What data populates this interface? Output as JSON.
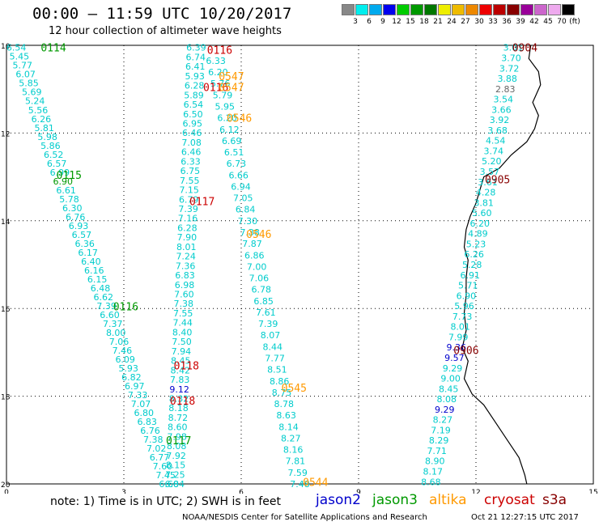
{
  "header": {
    "title": "00:00 – 11:59 UTC 10/20/2017",
    "subtitle": "12 hour collection of altimeter wave heights"
  },
  "colorbar": {
    "unit_label": "(ft)",
    "bins": [
      {
        "label": "3",
        "color": "#888888"
      },
      {
        "label": "6",
        "color": "#00eeee"
      },
      {
        "label": "9",
        "color": "#00aaee"
      },
      {
        "label": "12",
        "color": "#0000ee"
      },
      {
        "label": "15",
        "color": "#00cc00"
      },
      {
        "label": "18",
        "color": "#009900"
      },
      {
        "label": "21",
        "color": "#007700"
      },
      {
        "label": "24",
        "color": "#eeee00"
      },
      {
        "label": "27",
        "color": "#eebb00"
      },
      {
        "label": "30",
        "color": "#ee8800"
      },
      {
        "label": "33",
        "color": "#ee0000"
      },
      {
        "label": "36",
        "color": "#bb0000"
      },
      {
        "label": "39",
        "color": "#880000"
      },
      {
        "label": "42",
        "color": "#990099"
      },
      {
        "label": "45",
        "color": "#cc66cc"
      },
      {
        "label": "70",
        "color": "#eeaaee"
      },
      {
        "label": "",
        "color": "#000000"
      }
    ]
  },
  "colors": {
    "jason2": "#0000cc",
    "jason3": "#009900",
    "altika": "#ff9900",
    "cryosat": "#cc0000",
    "s3a": "#880000",
    "value_cyan": "#00cccc",
    "value_gray": "#666666",
    "grid": "#000000"
  },
  "map": {
    "x_ticks": [
      "0",
      "3",
      "6",
      "9",
      "12",
      "15"
    ],
    "y_ticks": [
      "10",
      "12",
      "14",
      "16",
      "18",
      "20"
    ],
    "coast_points_lonlat": [
      [
        13.4,
        10.0
      ],
      [
        13.35,
        10.3
      ],
      [
        13.6,
        10.6
      ],
      [
        13.65,
        10.9
      ],
      [
        13.45,
        11.3
      ],
      [
        13.6,
        11.6
      ],
      [
        13.5,
        11.9
      ],
      [
        13.3,
        12.2
      ],
      [
        12.9,
        12.5
      ],
      [
        12.6,
        12.8
      ],
      [
        12.2,
        13.0
      ],
      [
        12.1,
        13.3
      ],
      [
        12.0,
        13.6
      ],
      [
        11.85,
        13.9
      ],
      [
        11.75,
        14.2
      ],
      [
        11.7,
        14.6
      ],
      [
        11.8,
        14.9
      ],
      [
        11.75,
        15.3
      ],
      [
        11.75,
        15.7
      ],
      [
        11.7,
        16.1
      ],
      [
        11.75,
        16.5
      ],
      [
        11.65,
        16.9
      ],
      [
        11.8,
        17.2
      ],
      [
        11.7,
        17.6
      ],
      [
        11.9,
        17.95
      ],
      [
        12.2,
        18.2
      ],
      [
        12.5,
        18.6
      ],
      [
        12.8,
        19.0
      ],
      [
        13.1,
        19.4
      ],
      [
        13.25,
        19.8
      ],
      [
        13.3,
        20.0
      ]
    ]
  },
  "passes": [
    {
      "time": "0114",
      "sat": "jason3",
      "lon": 1.2,
      "lat": 10.05,
      "label_color": "#009900"
    },
    {
      "time": "0115",
      "sat": "jason3",
      "lon": 1.6,
      "lat": 12.95,
      "label_color": "#009900"
    },
    {
      "time": "0116",
      "sat": "jason3",
      "lon": 3.05,
      "lat": 15.95,
      "label_color": "#009900"
    },
    {
      "time": "0117",
      "sat": "jason3",
      "lon": 4.4,
      "lat": 19.0,
      "label_color": "#009900"
    },
    {
      "time": "0116",
      "sat": "cryosat",
      "lon": 5.45,
      "lat": 10.1,
      "label_color": "#cc0000"
    },
    {
      "time": "0116",
      "sat": "cryosat",
      "lon": 5.35,
      "lat": 10.95,
      "label_color": "#cc0000"
    },
    {
      "time": "0117",
      "sat": "cryosat",
      "lon": 5.0,
      "lat": 13.55,
      "label_color": "#cc0000"
    },
    {
      "time": "0118",
      "sat": "cryosat",
      "lon": 4.6,
      "lat": 17.3,
      "label_color": "#cc0000"
    },
    {
      "time": "0118",
      "sat": "cryosat",
      "lon": 4.5,
      "lat": 18.1,
      "label_color": "#cc0000"
    },
    {
      "time": "0547",
      "sat": "altika",
      "lon": 5.75,
      "lat": 10.7,
      "label_color": "#ff9900"
    },
    {
      "time": "0547",
      "sat": "altika",
      "lon": 5.75,
      "lat": 10.95,
      "label_color": "#ff9900"
    },
    {
      "time": "0546",
      "sat": "altika",
      "lon": 5.95,
      "lat": 11.65,
      "label_color": "#ff9900"
    },
    {
      "time": "0546",
      "sat": "altika",
      "lon": 6.45,
      "lat": 14.3,
      "label_color": "#ff9900"
    },
    {
      "time": "0545",
      "sat": "altika",
      "lon": 7.35,
      "lat": 17.8,
      "label_color": "#ff9900"
    },
    {
      "time": "0544",
      "sat": "altika",
      "lon": 7.9,
      "lat": 19.95,
      "label_color": "#ff9900"
    },
    {
      "time": "0904",
      "sat": "s3a",
      "lon": 13.25,
      "lat": 10.05,
      "label_color": "#880000"
    },
    {
      "time": "0905",
      "sat": "s3a",
      "lon": 12.55,
      "lat": 13.05,
      "label_color": "#880000"
    },
    {
      "time": "0906",
      "sat": "s3a",
      "lon": 11.75,
      "lat": 16.95,
      "label_color": "#880000"
    }
  ],
  "tracks": [
    {
      "name": "jason3-0114-0117",
      "start": [
        0.25,
        10.05
      ],
      "end": [
        4.15,
        20.0
      ],
      "values": [
        "6.54",
        "5.45",
        "5.77",
        "6.07",
        "5.85",
        "5.69",
        "5.24",
        "5.56",
        "6.26",
        "5.81",
        "5.98",
        "5.86",
        "6.52",
        "6.57",
        "6.99",
        "6.90",
        "6.61",
        "5.78",
        "6.30",
        "6.76",
        "6.93",
        "6.57",
        "6.36",
        "6.17",
        "6.40",
        "6.16",
        "6.15",
        "6.48",
        "6.62",
        "7.39",
        "6.60",
        "7.37",
        "8.00",
        "7.06",
        "7.46",
        "6.09",
        "5.93",
        "6.82",
        "6.97",
        "7.33",
        "7.07",
        "6.80",
        "6.83",
        "6.76",
        "7.38",
        "7.02",
        "6.77",
        "7.60",
        "7.45",
        "6.60"
      ],
      "value_colors": {
        "15": "#009900"
      }
    },
    {
      "name": "cryosat-0116-0118",
      "start": [
        4.85,
        10.05
      ],
      "end": [
        4.3,
        20.0
      ],
      "values": [
        "6.39",
        "6.74",
        "6.41",
        "5.93",
        "6.28",
        "5.89",
        "6.54",
        "6.50",
        "6.95",
        "6.46",
        "7.08",
        "6.46",
        "6.33",
        "6.75",
        "7.55",
        "7.15",
        "6.79",
        "7.39",
        "7.16",
        "6.28",
        "7.90",
        "8.01",
        "7.24",
        "7.36",
        "6.83",
        "6.98",
        "7.60",
        "7.38",
        "7.55",
        "7.44",
        "8.40",
        "7.50",
        "7.94",
        "8.45",
        "8.42",
        "7.83",
        "9.12",
        "8.32",
        "8.18",
        "8.72",
        "8.60",
        "7.98",
        "8.08",
        "7.92",
        "8.15",
        "7.25",
        "6.84"
      ],
      "value_colors": {
        "36": "#0000cc"
      }
    },
    {
      "name": "altika-0544-0547",
      "start": [
        5.35,
        10.35
      ],
      "end": [
        7.5,
        20.0
      ],
      "values": [
        "6.33",
        "6.20",
        "5.76",
        "5.79",
        "5.95",
        "6.20",
        "6.12",
        "6.69",
        "6.51",
        "6.73",
        "6.66",
        "6.94",
        "7.05",
        "6.84",
        "7.30",
        "7.38",
        "7.87",
        "6.86",
        "7.00",
        "7.06",
        "6.78",
        "6.85",
        "7.61",
        "7.39",
        "8.07",
        "8.44",
        "7.77",
        "8.51",
        "8.86",
        "8.75",
        "8.78",
        "8.63",
        "8.14",
        "8.27",
        "8.16",
        "7.81",
        "7.59",
        "7.48"
      ],
      "value_colors": {}
    },
    {
      "name": "s3a-0904-0906",
      "start": [
        12.95,
        10.05
      ],
      "end": [
        10.85,
        19.95
      ],
      "values": [
        "3.01",
        "3.70",
        "3.72",
        "3.88",
        "2.83",
        "3.54",
        "3.66",
        "3.92",
        "3.68",
        "4.54",
        "3.74",
        "5.20",
        "3.57",
        "3.61",
        "4.28",
        "3.81",
        "5.60",
        "6.20",
        "4.89",
        "5.23",
        "6.26",
        "5.28",
        "6.91",
        "5.71",
        "6.90",
        "5.96",
        "7.73",
        "8.01",
        "7.99",
        "9.36",
        "9.57",
        "9.29",
        "9.00",
        "8.45",
        "8.08",
        "9.29",
        "8.27",
        "7.19",
        "8.29",
        "7.71",
        "8.90",
        "8.17",
        "8.68"
      ],
      "value_colors": {
        "4": "#666666",
        "29": "#0000cc",
        "30": "#0000cc",
        "35": "#0000cc"
      }
    }
  ],
  "footer": {
    "note": "note:  1) Time is in UTC;  2) SWH is in feet",
    "legend": [
      {
        "label": "jason2",
        "color": "#0000cc"
      },
      {
        "label": "jason3",
        "color": "#009900"
      },
      {
        "label": "altika",
        "color": "#ff9900"
      },
      {
        "label": "cryosat",
        "color": "#cc0000"
      },
      {
        "label": "s3a",
        "color": "#880000"
      }
    ],
    "credit": "NOAA/NESDIS Center for Satellite Applications and Research",
    "timestamp": "Oct 21 12:27:15 UTC 2017"
  }
}
